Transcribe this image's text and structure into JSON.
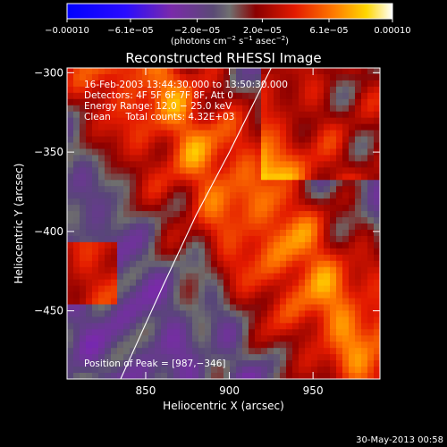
{
  "chart_data": {
    "type": "heatmap",
    "title": "Reconstructed RHESSI Image",
    "xlabel": "Heliocentric X (arcsec)",
    "ylabel": "Heliocentric Y (arcsec)",
    "xlim": [
      803,
      990
    ],
    "ylim": [
      -493,
      -297
    ],
    "x_ticks": [
      {
        "v": 850,
        "label": "850"
      },
      {
        "v": 900,
        "label": "900"
      },
      {
        "v": 950,
        "label": "950"
      }
    ],
    "y_ticks": [
      {
        "v": -300,
        "label": "−300"
      },
      {
        "v": -350,
        "label": "−350"
      },
      {
        "v": -400,
        "label": "−400"
      },
      {
        "v": -450,
        "label": "−450"
      }
    ],
    "colorbar": {
      "range": [
        -0.0001,
        0.0001
      ],
      "ticks": [
        {
          "v": -0.0001,
          "label": "−0.00010"
        },
        {
          "v": -6.1e-05,
          "label": "−6.1e−05"
        },
        {
          "v": -2e-05,
          "label": "−2.0e−05"
        },
        {
          "v": 2e-05,
          "label": "2.0e−05"
        },
        {
          "v": 6.1e-05,
          "label": "6.1e−05"
        },
        {
          "v": 0.0001,
          "label": "0.00010"
        }
      ],
      "units_prefix": "(photons cm",
      "units_sup1": "−2",
      "units_mid": " s",
      "units_sup2": "−1",
      "units_suffix": " asec",
      "units_sup3": "−2",
      "units_close": ")"
    },
    "info_lines": [
      "16-Feb-2003 13:44:30.000 to 13:50:30.000",
      "Detectors: 4F 5F 6F 7F 8F, Att 0",
      "Energy Range: 12.0 − 25.0 keV",
      "Clean     Total counts: 4.32E+03"
    ],
    "peak_text": "Position of Peak = [987,−346]",
    "date_stamp": "30-May-2013 00:58",
    "limb": true,
    "grid": false
  }
}
